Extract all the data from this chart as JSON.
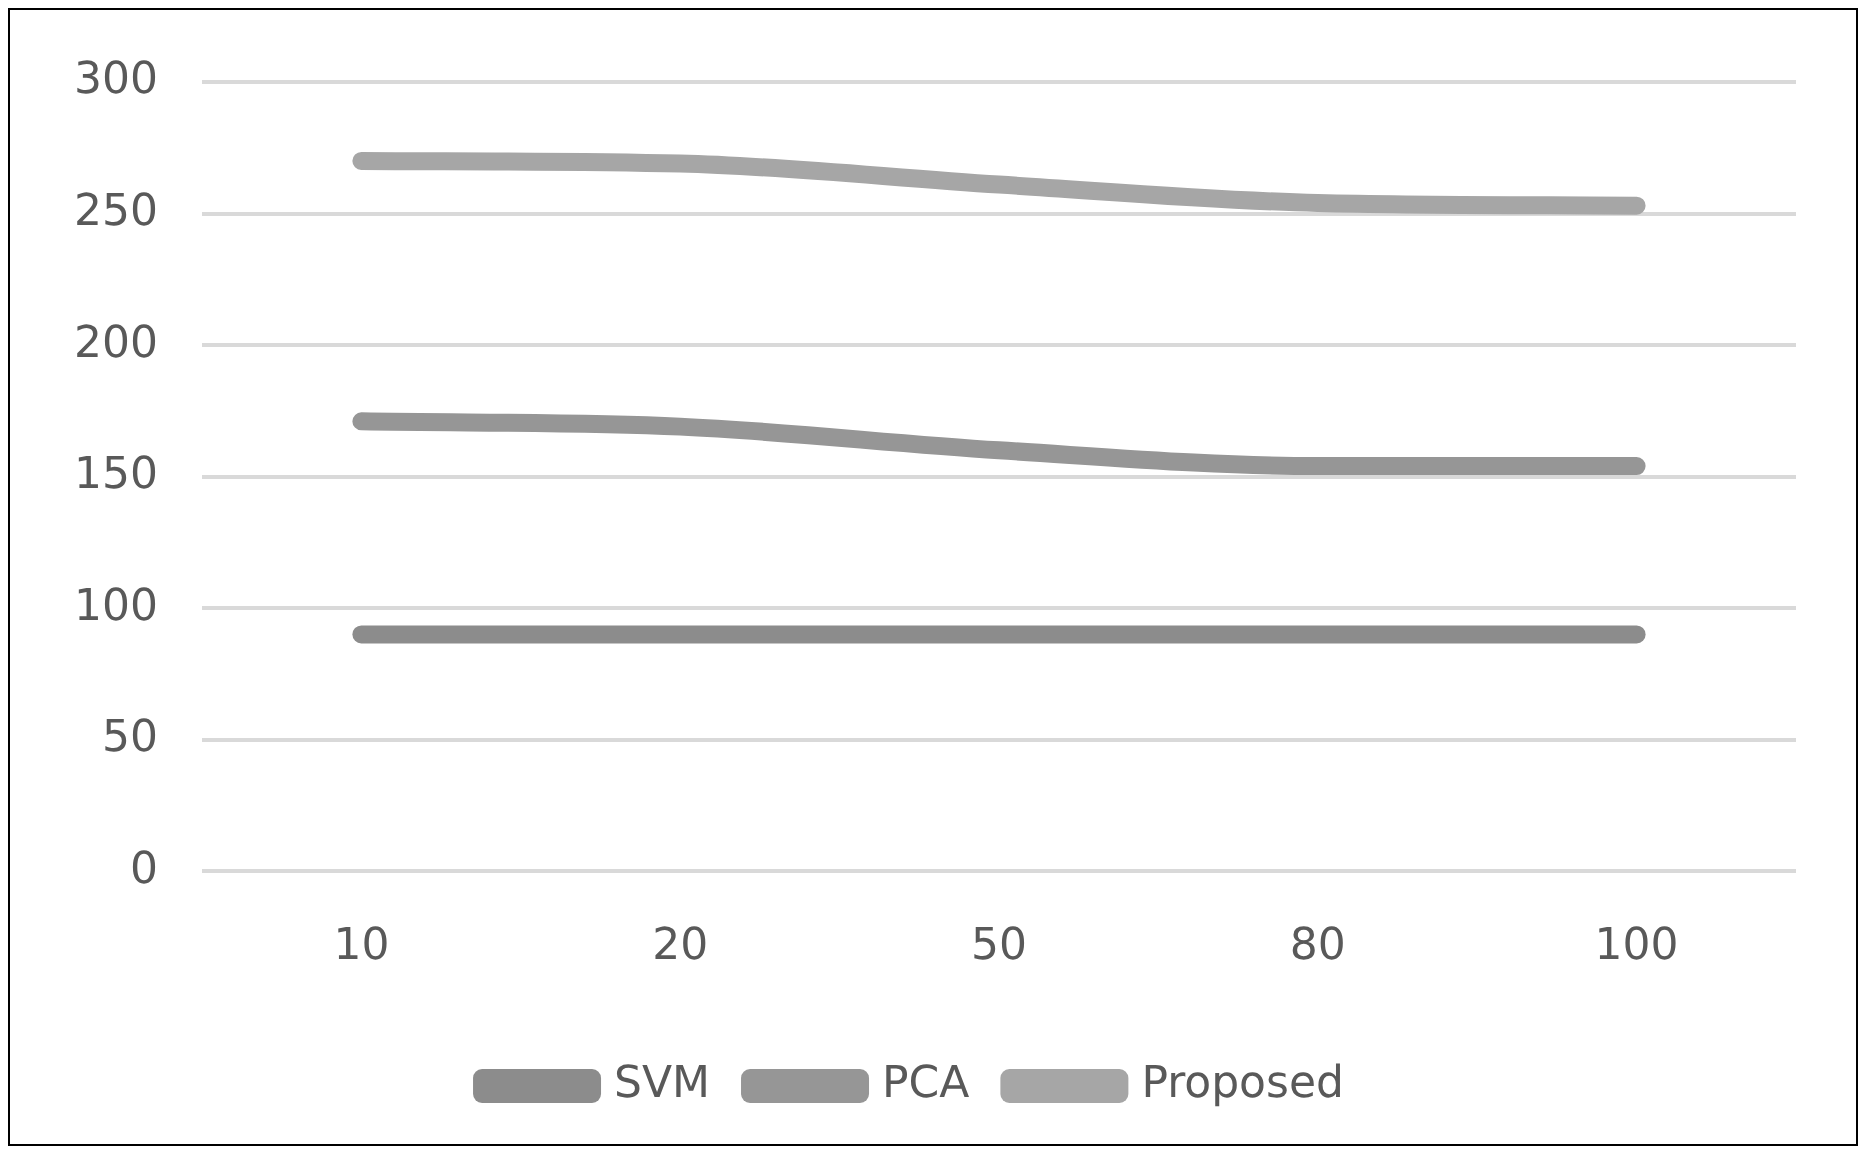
{
  "chart_data": {
    "type": "line",
    "categories": [
      "10",
      "20",
      "50",
      "80",
      "100"
    ],
    "series": [
      {
        "name": "SVM",
        "color": "#8c8c8c",
        "values": [
          90,
          90,
          90,
          90,
          90
        ]
      },
      {
        "name": "PCA",
        "color": "#969696",
        "values": [
          171,
          169,
          160,
          154,
          154
        ]
      },
      {
        "name": "Proposed",
        "color": "#a6a6a6",
        "values": [
          270,
          269,
          261,
          254,
          253
        ]
      }
    ],
    "ylim": [
      0,
      300
    ],
    "yticks": [
      0,
      50,
      100,
      150,
      200,
      250,
      300
    ],
    "grid": "y",
    "legend": "bottom",
    "marker": "none",
    "line_style": "solid"
  }
}
